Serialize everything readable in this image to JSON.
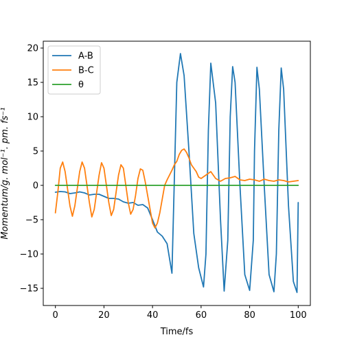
{
  "chart_data": {
    "type": "line",
    "xlabel": "Time/fs",
    "ylabel": "Momentum/g. mol⁻¹. pm. fs⁻¹",
    "xlim": [
      -5,
      105
    ],
    "ylim": [
      -17.5,
      21
    ],
    "xticks": [
      0,
      20,
      40,
      60,
      80,
      100
    ],
    "yticks": [
      -15,
      -10,
      -5,
      0,
      5,
      10,
      15,
      20
    ],
    "grid": false,
    "legend_position": "top-left",
    "series": [
      {
        "name": "A-B",
        "color": "#1f77b4",
        "x": [
          0,
          2,
          4,
          6,
          8,
          10,
          12,
          14,
          16,
          18,
          20,
          22,
          24,
          26,
          28,
          30,
          32,
          34,
          36,
          38,
          40,
          42,
          44,
          46,
          48,
          50,
          51.5,
          53,
          55,
          57,
          59,
          61,
          62,
          63,
          64,
          66,
          68,
          69.5,
          71,
          72,
          73,
          74,
          76,
          78,
          80,
          81.5,
          82,
          83,
          84,
          86,
          88,
          90,
          91,
          92,
          93,
          94,
          96,
          98,
          99.5,
          100
        ],
        "y": [
          -1,
          -0.9,
          -0.95,
          -1.2,
          -1.1,
          -0.95,
          -1.1,
          -1.4,
          -1.3,
          -1.3,
          -1.6,
          -1.9,
          -1.9,
          -2.0,
          -2.4,
          -2.6,
          -2.5,
          -2.9,
          -2.8,
          -3.3,
          -5.0,
          -6.8,
          -7.4,
          -8.5,
          -12.8,
          15,
          19.2,
          16,
          5,
          -7,
          -12,
          -14.8,
          -10,
          8,
          17.8,
          12,
          -5,
          -15.4,
          -8,
          10,
          17.3,
          15,
          0,
          -13,
          -15.3,
          -8,
          5,
          17.2,
          14,
          0,
          -13,
          -15.5,
          -10,
          8,
          17.1,
          14,
          -3,
          -14,
          -15.6,
          -2.5
        ]
      },
      {
        "name": "B-C",
        "color": "#ff7f0e",
        "x": [
          0,
          1,
          2,
          3,
          4,
          5,
          6,
          7,
          8,
          9,
          10,
          11,
          12,
          13,
          14,
          15,
          16,
          17,
          18,
          19,
          20,
          21,
          22,
          23,
          24,
          25,
          26,
          27,
          28,
          29,
          30,
          31,
          32,
          33,
          34,
          35,
          36,
          37,
          38,
          39,
          40,
          41,
          42,
          43,
          44,
          45,
          46,
          47,
          48,
          49,
          50,
          51,
          52,
          53,
          54,
          55,
          56,
          57,
          58,
          59,
          60,
          62,
          64,
          66,
          68,
          70,
          72,
          74,
          76,
          78,
          80,
          82,
          84,
          86,
          88,
          90,
          92,
          94,
          96,
          98,
          100
        ],
        "y": [
          -4,
          -1,
          2.5,
          3.4,
          2,
          -0.5,
          -3,
          -4.5,
          -3,
          -0.5,
          2,
          3.4,
          2.5,
          0,
          -2.5,
          -4.6,
          -3.5,
          -1,
          1.5,
          3.3,
          2.5,
          0,
          -2.5,
          -4.4,
          -3.5,
          -1,
          1.5,
          3,
          2.5,
          0,
          -2.5,
          -4.2,
          -3.5,
          -1.5,
          1,
          2.4,
          2.2,
          0.5,
          -1.5,
          -3.5,
          -5.5,
          -6.2,
          -5.5,
          -4,
          -2,
          0,
          0.8,
          1.5,
          2.2,
          3,
          3.5,
          4.5,
          5.1,
          5.3,
          4.8,
          4,
          3,
          2.5,
          2,
          1.2,
          1,
          1.5,
          2,
          1,
          0.6,
          1,
          1.1,
          1.3,
          0.8,
          0.7,
          0.9,
          0.8,
          0.6,
          0.9,
          0.7,
          0.6,
          0.8,
          0.7,
          0.5,
          0.6,
          0.7
        ]
      },
      {
        "name": "θ",
        "color": "#2ca02c",
        "x": [
          0,
          100
        ],
        "y": [
          0,
          0
        ]
      }
    ]
  }
}
